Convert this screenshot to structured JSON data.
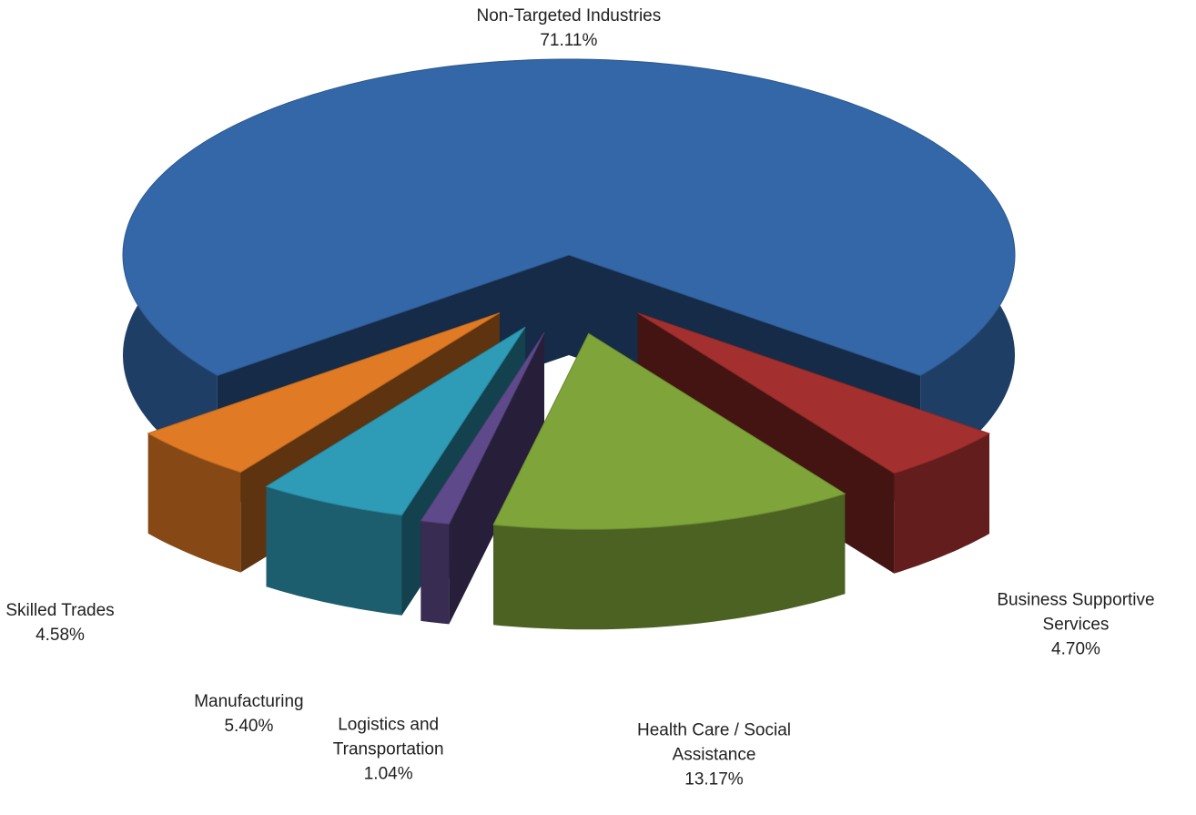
{
  "chart_data": {
    "type": "pie3d",
    "categories": [
      "Non-Targeted Industries",
      "Business Supportive Services",
      "Health Care / Social Assistance",
      "Logistics and Transportation",
      "Manufacturing",
      "Skilled Trades"
    ],
    "values": [
      71.11,
      4.7,
      13.17,
      1.04,
      5.4,
      4.58
    ],
    "value_labels": [
      "71.11%",
      "4.70%",
      "13.17%",
      "1.04%",
      "5.40%",
      "4.58%"
    ],
    "colors": [
      "#3467a8",
      "#a3302e",
      "#7fa43a",
      "#5e4a8a",
      "#2e9bb7",
      "#e07a24"
    ]
  }
}
